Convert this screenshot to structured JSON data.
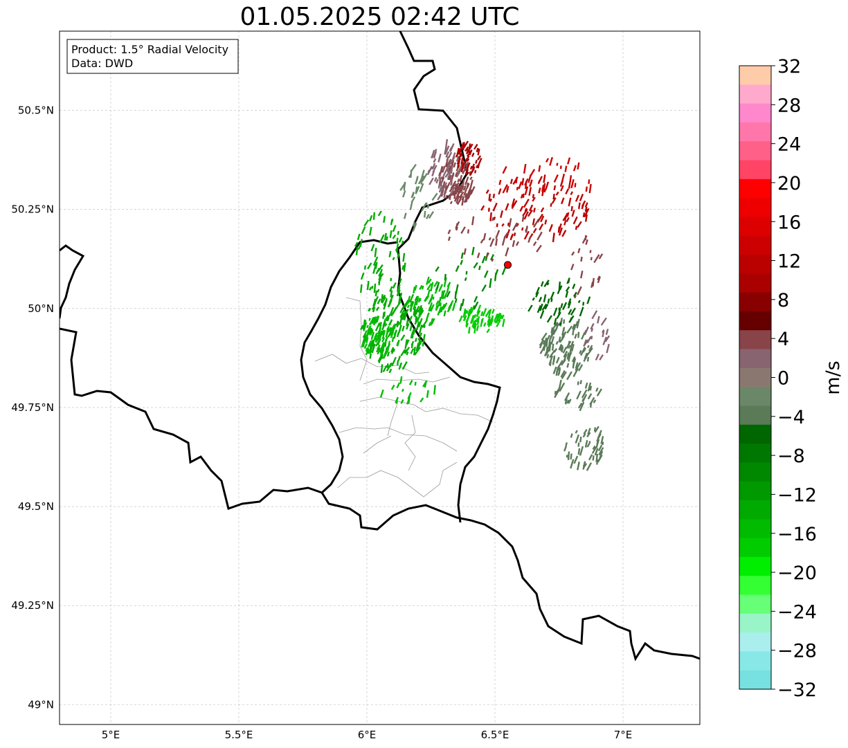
{
  "title": "01.05.2025 02:42 UTC",
  "info_box": {
    "product": "Product: 1.5° Radial Velocity",
    "source": "Data: DWD"
  },
  "axes": {
    "lon_range": [
      4.8,
      7.3
    ],
    "lat_range": [
      48.95,
      50.7
    ],
    "lon_ticks": [
      {
        "value": 5.0,
        "label": "5°E"
      },
      {
        "value": 5.5,
        "label": "5.5°E"
      },
      {
        "value": 6.0,
        "label": "6°E"
      },
      {
        "value": 6.5,
        "label": "6.5°E"
      },
      {
        "value": 7.0,
        "label": "7°E"
      }
    ],
    "lat_ticks": [
      {
        "value": 50.5,
        "label": "50.5°N"
      },
      {
        "value": 50.25,
        "label": "50.25°N"
      },
      {
        "value": 50.0,
        "label": "50°N"
      },
      {
        "value": 49.75,
        "label": "49.75°N"
      },
      {
        "value": 49.5,
        "label": "49.5°N"
      },
      {
        "value": 49.25,
        "label": "49.25°N"
      },
      {
        "value": 49.0,
        "label": "49°N"
      }
    ],
    "grid": true
  },
  "radar_site": {
    "lon": 6.55,
    "lat": 50.11,
    "marker_color": "#ff0000"
  },
  "colorbar": {
    "label": "m/s",
    "range": [
      -32,
      32
    ],
    "ticks": [
      {
        "value": 32,
        "label": "32"
      },
      {
        "value": 28,
        "label": "28"
      },
      {
        "value": 24,
        "label": "24"
      },
      {
        "value": 20,
        "label": "20"
      },
      {
        "value": 16,
        "label": "16"
      },
      {
        "value": 12,
        "label": "12"
      },
      {
        "value": 8,
        "label": "8"
      },
      {
        "value": 4,
        "label": "4"
      },
      {
        "value": 0,
        "label": "0"
      },
      {
        "value": -4,
        "label": "−4"
      },
      {
        "value": -8,
        "label": "−8"
      },
      {
        "value": -12,
        "label": "−12"
      },
      {
        "value": -16,
        "label": "−16"
      },
      {
        "value": -20,
        "label": "−20"
      },
      {
        "value": -24,
        "label": "−24"
      },
      {
        "value": -28,
        "label": "−28"
      },
      {
        "value": -32,
        "label": "−32"
      }
    ],
    "colors_top_to_bottom": [
      "#ffccaa",
      "#ffaacc",
      "#ff88cc",
      "#ff77aa",
      "#ff6088",
      "#ff4466",
      "#ff0000",
      "#ee0000",
      "#dd0000",
      "#cc0000",
      "#bb0000",
      "#aa0000",
      "#880000",
      "#660000",
      "#884448",
      "#886470",
      "#8a7870",
      "#6a8868",
      "#5a7a58",
      "#006600",
      "#007700",
      "#008800",
      "#009900",
      "#00aa00",
      "#00bb00",
      "#00cc00",
      "#00ee00",
      "#33ff33",
      "#66ff77",
      "#99f5c8",
      "#aaeeee",
      "#88e8e8",
      "#77e0e0"
    ]
  },
  "velocity_regions": [
    {
      "lon": 6.1,
      "lat": 49.95,
      "rlon": 0.13,
      "rlat": 0.11,
      "count": 160,
      "color": "#00aa00"
    },
    {
      "lon": 6.05,
      "lat": 49.93,
      "rlon": 0.08,
      "rlat": 0.05,
      "count": 90,
      "color": "#00bb00"
    },
    {
      "lon": 6.05,
      "lat": 50.12,
      "rlon": 0.1,
      "rlat": 0.12,
      "count": 60,
      "color": "#00aa00"
    },
    {
      "lon": 6.25,
      "lat": 50.02,
      "rlon": 0.1,
      "rlat": 0.06,
      "count": 60,
      "color": "#00bb00"
    },
    {
      "lon": 6.45,
      "lat": 49.97,
      "rlon": 0.09,
      "rlat": 0.03,
      "count": 60,
      "color": "#00cc00"
    },
    {
      "lon": 6.4,
      "lat": 50.08,
      "rlon": 0.14,
      "rlat": 0.08,
      "count": 30,
      "color": "#008800"
    },
    {
      "lon": 6.15,
      "lat": 49.8,
      "rlon": 0.12,
      "rlat": 0.04,
      "count": 18,
      "color": "#00bb00"
    },
    {
      "lon": 6.35,
      "lat": 50.32,
      "rlon": 0.07,
      "rlat": 0.06,
      "count": 90,
      "color": "#884448"
    },
    {
      "lon": 6.3,
      "lat": 50.35,
      "rlon": 0.06,
      "rlat": 0.07,
      "count": 50,
      "color": "#886470"
    },
    {
      "lon": 6.4,
      "lat": 50.38,
      "rlon": 0.05,
      "rlat": 0.04,
      "count": 40,
      "color": "#aa0000"
    },
    {
      "lon": 6.2,
      "lat": 50.28,
      "rlon": 0.07,
      "rlat": 0.08,
      "count": 30,
      "color": "#6a8868"
    },
    {
      "lon": 6.65,
      "lat": 50.25,
      "rlon": 0.22,
      "rlat": 0.08,
      "count": 90,
      "color": "#bb0000"
    },
    {
      "lon": 6.7,
      "lat": 50.32,
      "rlon": 0.2,
      "rlat": 0.06,
      "count": 40,
      "color": "#cc0000"
    },
    {
      "lon": 6.5,
      "lat": 50.18,
      "rlon": 0.2,
      "rlat": 0.06,
      "count": 35,
      "color": "#884448"
    },
    {
      "lon": 6.78,
      "lat": 49.9,
      "rlon": 0.1,
      "rlat": 0.07,
      "count": 100,
      "color": "#5a7a58"
    },
    {
      "lon": 6.75,
      "lat": 50.02,
      "rlon": 0.12,
      "rlat": 0.06,
      "count": 45,
      "color": "#006600"
    },
    {
      "lon": 6.82,
      "lat": 49.78,
      "rlon": 0.1,
      "rlat": 0.04,
      "count": 30,
      "color": "#5a7a58"
    },
    {
      "lon": 6.85,
      "lat": 49.65,
      "rlon": 0.08,
      "rlat": 0.06,
      "count": 45,
      "color": "#5a7a58"
    },
    {
      "lon": 6.9,
      "lat": 49.93,
      "rlon": 0.05,
      "rlat": 0.06,
      "count": 18,
      "color": "#886470"
    },
    {
      "lon": 6.85,
      "lat": 50.1,
      "rlon": 0.08,
      "rlat": 0.08,
      "count": 18,
      "color": "#884448"
    }
  ]
}
